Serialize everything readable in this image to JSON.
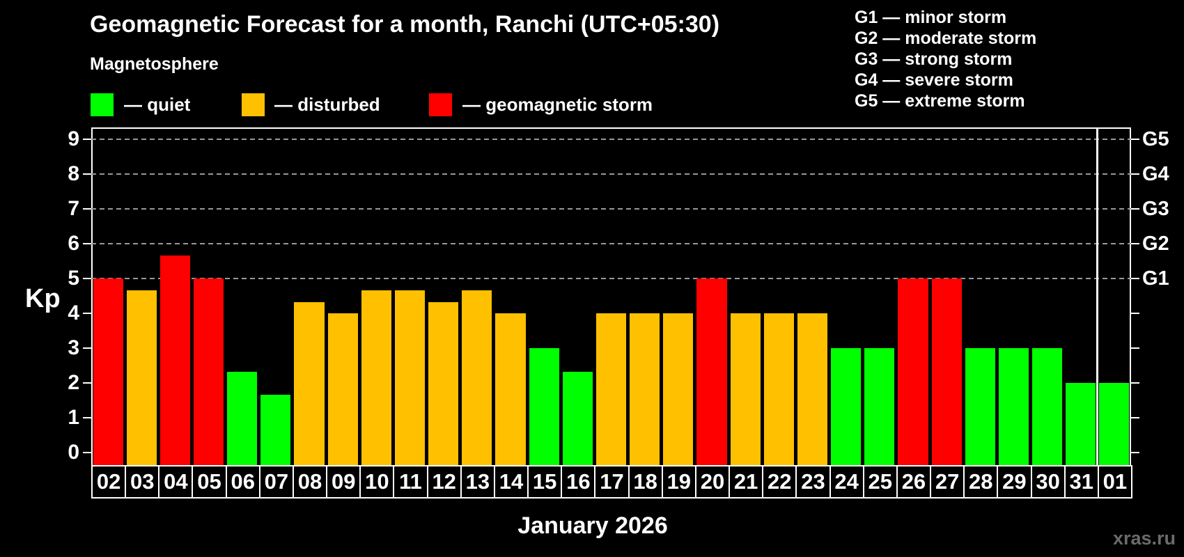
{
  "header": {
    "title": "Geomagnetic Forecast for a month, Ranchi (UTC+05:30)",
    "subtitle": "Magnetosphere"
  },
  "legend": {
    "items": [
      {
        "key": "quiet",
        "label": "— quiet",
        "color": "#00ff00"
      },
      {
        "key": "disturbed",
        "label": "— disturbed",
        "color": "#ffc000"
      },
      {
        "key": "storm",
        "label": "— geomagnetic storm",
        "color": "#ff0000"
      }
    ]
  },
  "g_scale": [
    "G1 — minor storm",
    "G2 — moderate storm",
    "G3 — strong storm",
    "G4 — severe storm",
    "G5 — extreme storm"
  ],
  "axis": {
    "kp_label": "Kp",
    "month_label": "January 2026"
  },
  "watermark": "xras.ru",
  "chart_data": {
    "type": "bar",
    "title": "Geomagnetic Forecast for a month, Ranchi (UTC+05:30)",
    "xlabel": "January 2026",
    "ylabel": "Kp",
    "ylim": [
      0,
      9
    ],
    "grid": "dashed horizontal at Kp 5-9 only",
    "legend_position": "top-left",
    "categories": [
      "02",
      "03",
      "04",
      "05",
      "06",
      "07",
      "08",
      "09",
      "10",
      "11",
      "12",
      "13",
      "14",
      "15",
      "16",
      "17",
      "18",
      "19",
      "20",
      "21",
      "22",
      "23",
      "24",
      "25",
      "26",
      "27",
      "28",
      "29",
      "30",
      "31",
      "01"
    ],
    "values": [
      5,
      4.67,
      5.67,
      5,
      2.33,
      1.67,
      4.33,
      4,
      4.67,
      4.67,
      4.33,
      4.67,
      4,
      3,
      2.33,
      4,
      4,
      4,
      5,
      4,
      4,
      4,
      3,
      3,
      5,
      5,
      3,
      3,
      3,
      2,
      2
    ],
    "statuses": [
      "storm",
      "disturbed",
      "storm",
      "storm",
      "quiet",
      "quiet",
      "disturbed",
      "disturbed",
      "disturbed",
      "disturbed",
      "disturbed",
      "disturbed",
      "disturbed",
      "quiet",
      "quiet",
      "disturbed",
      "disturbed",
      "disturbed",
      "storm",
      "disturbed",
      "disturbed",
      "disturbed",
      "quiet",
      "quiet",
      "storm",
      "storm",
      "quiet",
      "quiet",
      "quiet",
      "quiet",
      "quiet"
    ],
    "status_colors": {
      "quiet": "#00ff00",
      "disturbed": "#ffc000",
      "storm": "#ff0000"
    },
    "y_ticks": [
      0,
      1,
      2,
      3,
      4,
      5,
      6,
      7,
      8,
      9
    ],
    "gridline_values": [
      5,
      6,
      7,
      8,
      9
    ],
    "right_axis_labels": [
      {
        "value": 5,
        "label": "G1"
      },
      {
        "value": 6,
        "label": "G2"
      },
      {
        "value": 7,
        "label": "G3"
      },
      {
        "value": 8,
        "label": "G4"
      },
      {
        "value": 9,
        "label": "G5"
      }
    ],
    "separator_after_category": "31"
  }
}
